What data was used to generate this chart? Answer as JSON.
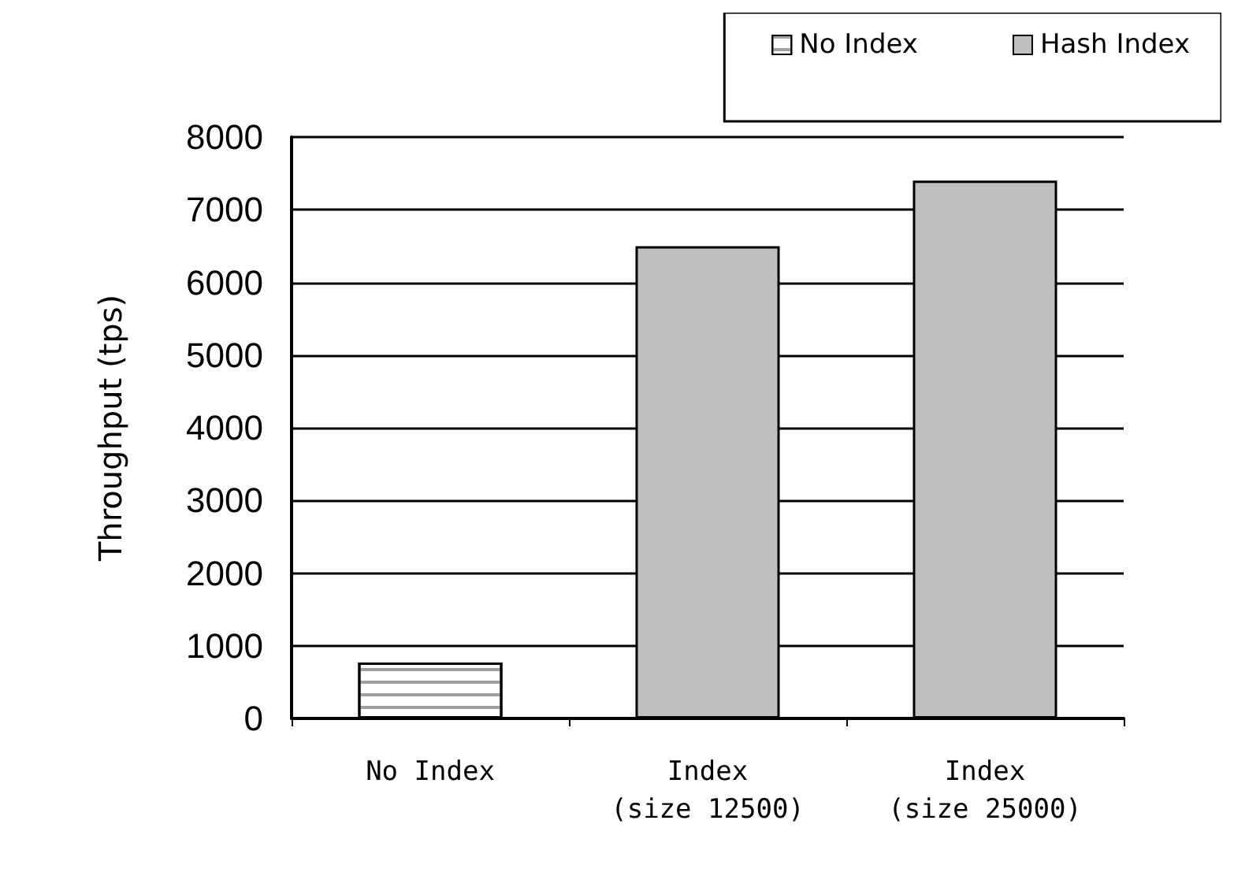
{
  "chart_data": {
    "type": "bar",
    "ylabel": "Throughput (tps)",
    "categories": [
      "No Index",
      "Index\n(size 12500)",
      "Index\n(size 25000)"
    ],
    "series": [
      {
        "name": "No Index",
        "color": "#ffffff",
        "values": [
          770,
          null,
          null
        ]
      },
      {
        "name": "Hash Index",
        "color": "#c0c0c0",
        "values": [
          null,
          6500,
          7400
        ]
      }
    ],
    "ylim": [
      0,
      8000
    ],
    "yticks": [
      0,
      1000,
      2000,
      3000,
      4000,
      5000,
      6000,
      7000,
      8000
    ],
    "grid": "y",
    "legend": "top right"
  }
}
